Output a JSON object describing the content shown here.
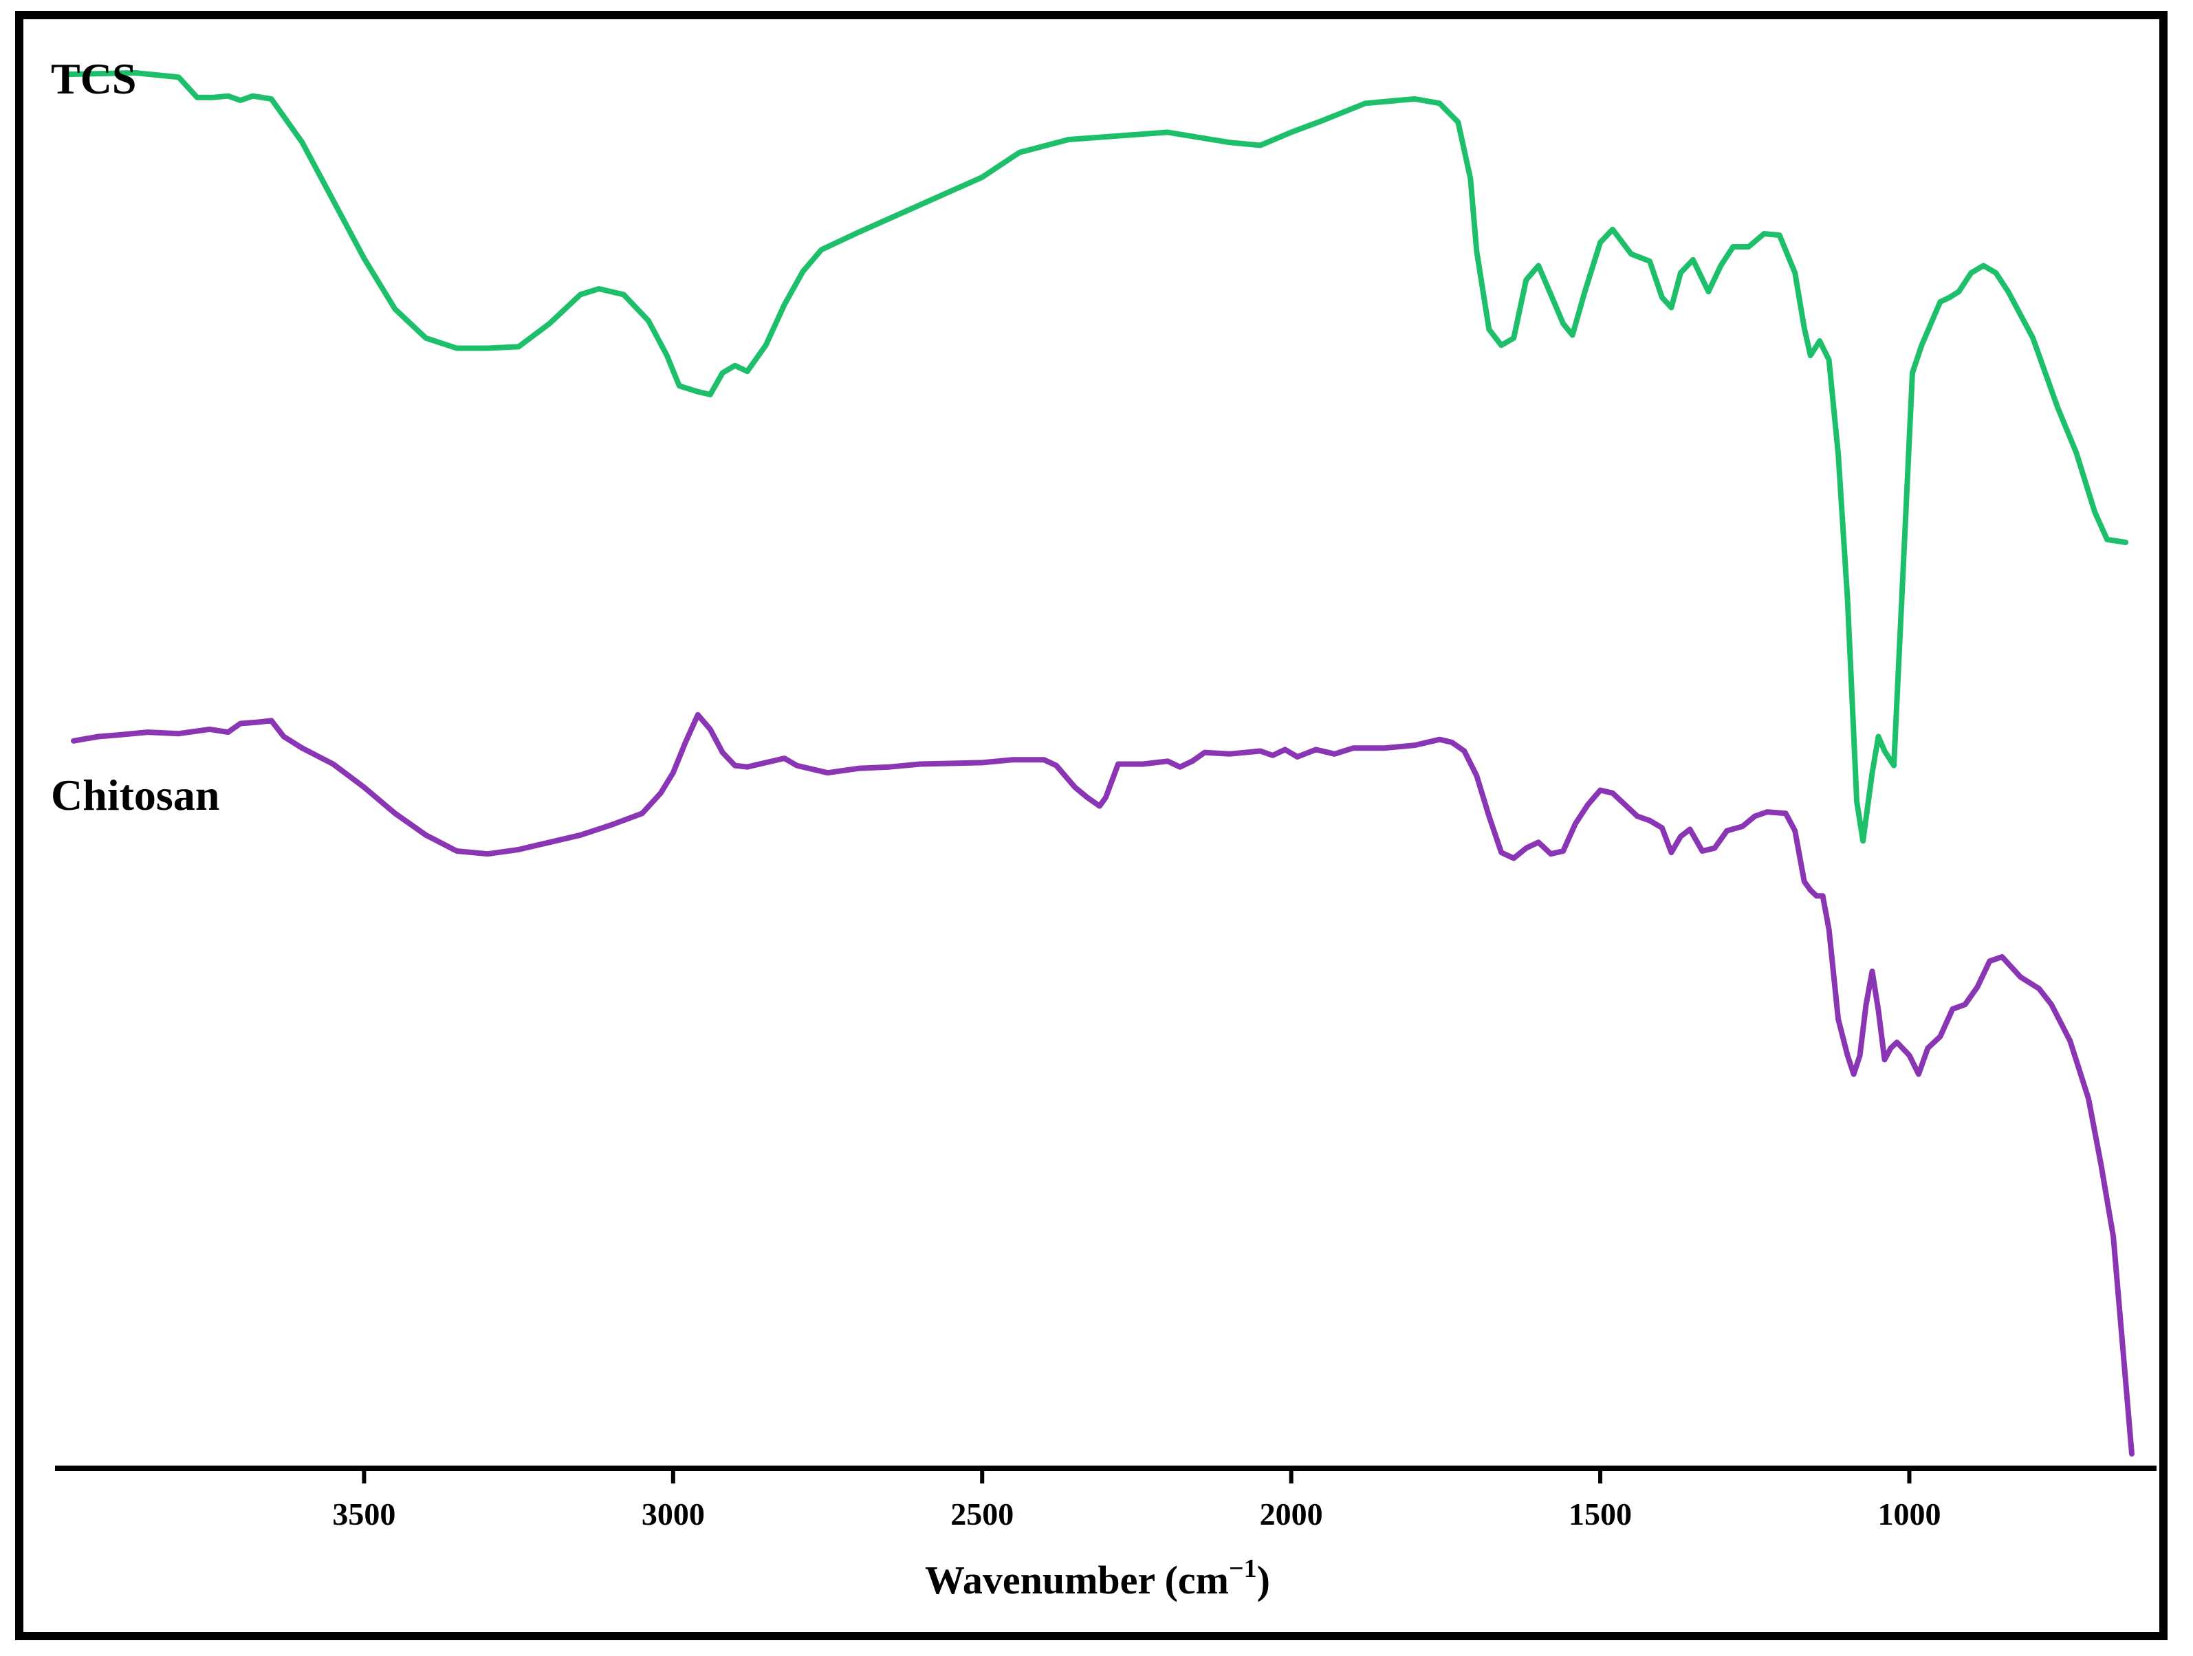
{
  "chart_data": {
    "type": "line",
    "xlabel": "Wavenumber  (cm",
    "xlabel_sup": "−1",
    "xlabel_close": ")",
    "xlim": [
      4000,
      600
    ],
    "x_ticks": [
      3500,
      3000,
      2500,
      2000,
      1500,
      1000
    ],
    "y_axis_visible": false,
    "grid": false,
    "series": [
      {
        "name": "TCS",
        "color": "#1dbf6a",
        "points": [
          [
            3980,
            0.962
          ],
          [
            3870,
            0.963
          ],
          [
            3800,
            0.96
          ],
          [
            3770,
            0.946
          ],
          [
            3745,
            0.946
          ],
          [
            3720,
            0.947
          ],
          [
            3700,
            0.944
          ],
          [
            3680,
            0.947
          ],
          [
            3650,
            0.945
          ],
          [
            3600,
            0.915
          ],
          [
            3550,
            0.875
          ],
          [
            3500,
            0.835
          ],
          [
            3450,
            0.8
          ],
          [
            3400,
            0.78
          ],
          [
            3350,
            0.773
          ],
          [
            3300,
            0.773
          ],
          [
            3250,
            0.774
          ],
          [
            3200,
            0.79
          ],
          [
            3150,
            0.81
          ],
          [
            3120,
            0.814
          ],
          [
            3080,
            0.81
          ],
          [
            3040,
            0.792
          ],
          [
            3010,
            0.768
          ],
          [
            2990,
            0.747
          ],
          [
            2960,
            0.743
          ],
          [
            2940,
            0.741
          ],
          [
            2920,
            0.756
          ],
          [
            2900,
            0.761
          ],
          [
            2880,
            0.757
          ],
          [
            2850,
            0.775
          ],
          [
            2820,
            0.803
          ],
          [
            2790,
            0.826
          ],
          [
            2760,
            0.841
          ],
          [
            2700,
            0.853
          ],
          [
            2600,
            0.872
          ],
          [
            2500,
            0.891
          ],
          [
            2440,
            0.908
          ],
          [
            2360,
            0.917
          ],
          [
            2200,
            0.922
          ],
          [
            2100,
            0.915
          ],
          [
            2050,
            0.913
          ],
          [
            2000,
            0.922
          ],
          [
            1950,
            0.93
          ],
          [
            1880,
            0.942
          ],
          [
            1800,
            0.945
          ],
          [
            1760,
            0.942
          ],
          [
            1730,
            0.929
          ],
          [
            1710,
            0.89
          ],
          [
            1700,
            0.84
          ],
          [
            1680,
            0.786
          ],
          [
            1660,
            0.775
          ],
          [
            1640,
            0.78
          ],
          [
            1620,
            0.82
          ],
          [
            1600,
            0.83
          ],
          [
            1580,
            0.81
          ],
          [
            1560,
            0.79
          ],
          [
            1545,
            0.782
          ],
          [
            1525,
            0.812
          ],
          [
            1500,
            0.846
          ],
          [
            1480,
            0.855
          ],
          [
            1450,
            0.838
          ],
          [
            1420,
            0.833
          ],
          [
            1400,
            0.808
          ],
          [
            1385,
            0.801
          ],
          [
            1370,
            0.825
          ],
          [
            1350,
            0.834
          ],
          [
            1325,
            0.812
          ],
          [
            1305,
            0.83
          ],
          [
            1285,
            0.843
          ],
          [
            1260,
            0.843
          ],
          [
            1235,
            0.852
          ],
          [
            1210,
            0.851
          ],
          [
            1185,
            0.825
          ],
          [
            1170,
            0.787
          ],
          [
            1160,
            0.768
          ],
          [
            1145,
            0.778
          ],
          [
            1130,
            0.765
          ],
          [
            1115,
            0.7
          ],
          [
            1100,
            0.6
          ],
          [
            1085,
            0.46
          ],
          [
            1075,
            0.433
          ],
          [
            1060,
            0.48
          ],
          [
            1050,
            0.505
          ],
          [
            1040,
            0.495
          ],
          [
            1025,
            0.485
          ],
          [
            1010,
            0.62
          ],
          [
            995,
            0.756
          ],
          [
            980,
            0.775
          ],
          [
            965,
            0.79
          ],
          [
            950,
            0.805
          ],
          [
            935,
            0.808
          ],
          [
            920,
            0.812
          ],
          [
            900,
            0.825
          ],
          [
            880,
            0.83
          ],
          [
            860,
            0.825
          ],
          [
            840,
            0.812
          ],
          [
            800,
            0.78
          ],
          [
            760,
            0.732
          ],
          [
            730,
            0.701
          ],
          [
            700,
            0.66
          ],
          [
            680,
            0.641
          ],
          [
            650,
            0.639
          ]
        ]
      },
      {
        "name": "Chitosan",
        "color": "#8a35b4",
        "points": [
          [
            3970,
            0.502
          ],
          [
            3930,
            0.505
          ],
          [
            3900,
            0.506
          ],
          [
            3850,
            0.508
          ],
          [
            3800,
            0.507
          ],
          [
            3750,
            0.51
          ],
          [
            3720,
            0.508
          ],
          [
            3700,
            0.514
          ],
          [
            3670,
            0.515
          ],
          [
            3650,
            0.516
          ],
          [
            3630,
            0.505
          ],
          [
            3600,
            0.497
          ],
          [
            3550,
            0.486
          ],
          [
            3500,
            0.47
          ],
          [
            3450,
            0.452
          ],
          [
            3400,
            0.437
          ],
          [
            3350,
            0.426
          ],
          [
            3300,
            0.424
          ],
          [
            3250,
            0.427
          ],
          [
            3200,
            0.432
          ],
          [
            3150,
            0.437
          ],
          [
            3100,
            0.444
          ],
          [
            3050,
            0.452
          ],
          [
            3020,
            0.466
          ],
          [
            3000,
            0.48
          ],
          [
            2980,
            0.501
          ],
          [
            2960,
            0.52
          ],
          [
            2940,
            0.51
          ],
          [
            2920,
            0.494
          ],
          [
            2900,
            0.485
          ],
          [
            2880,
            0.484
          ],
          [
            2850,
            0.487
          ],
          [
            2820,
            0.49
          ],
          [
            2800,
            0.485
          ],
          [
            2750,
            0.48
          ],
          [
            2700,
            0.483
          ],
          [
            2650,
            0.484
          ],
          [
            2600,
            0.486
          ],
          [
            2500,
            0.487
          ],
          [
            2450,
            0.489
          ],
          [
            2400,
            0.489
          ],
          [
            2380,
            0.485
          ],
          [
            2350,
            0.47
          ],
          [
            2330,
            0.463
          ],
          [
            2310,
            0.457
          ],
          [
            2300,
            0.463
          ],
          [
            2280,
            0.486
          ],
          [
            2240,
            0.486
          ],
          [
            2200,
            0.488
          ],
          [
            2180,
            0.484
          ],
          [
            2160,
            0.488
          ],
          [
            2140,
            0.494
          ],
          [
            2100,
            0.493
          ],
          [
            2050,
            0.495
          ],
          [
            2030,
            0.492
          ],
          [
            2010,
            0.496
          ],
          [
            1990,
            0.491
          ],
          [
            1960,
            0.496
          ],
          [
            1930,
            0.493
          ],
          [
            1900,
            0.497
          ],
          [
            1850,
            0.497
          ],
          [
            1800,
            0.499
          ],
          [
            1760,
            0.503
          ],
          [
            1740,
            0.501
          ],
          [
            1720,
            0.495
          ],
          [
            1700,
            0.478
          ],
          [
            1680,
            0.45
          ],
          [
            1660,
            0.425
          ],
          [
            1640,
            0.421
          ],
          [
            1620,
            0.428
          ],
          [
            1600,
            0.432
          ],
          [
            1580,
            0.424
          ],
          [
            1560,
            0.426
          ],
          [
            1540,
            0.445
          ],
          [
            1520,
            0.458
          ],
          [
            1500,
            0.468
          ],
          [
            1480,
            0.466
          ],
          [
            1460,
            0.458
          ],
          [
            1440,
            0.45
          ],
          [
            1420,
            0.447
          ],
          [
            1400,
            0.442
          ],
          [
            1385,
            0.425
          ],
          [
            1370,
            0.436
          ],
          [
            1355,
            0.441
          ],
          [
            1335,
            0.426
          ],
          [
            1315,
            0.428
          ],
          [
            1295,
            0.44
          ],
          [
            1270,
            0.443
          ],
          [
            1250,
            0.45
          ],
          [
            1230,
            0.453
          ],
          [
            1200,
            0.452
          ],
          [
            1185,
            0.44
          ],
          [
            1170,
            0.405
          ],
          [
            1160,
            0.399
          ],
          [
            1150,
            0.395
          ],
          [
            1140,
            0.395
          ],
          [
            1130,
            0.372
          ],
          [
            1115,
            0.31
          ],
          [
            1100,
            0.285
          ],
          [
            1090,
            0.272
          ],
          [
            1080,
            0.285
          ],
          [
            1070,
            0.32
          ],
          [
            1060,
            0.343
          ],
          [
            1050,
            0.316
          ],
          [
            1040,
            0.282
          ],
          [
            1030,
            0.29
          ],
          [
            1020,
            0.294
          ],
          [
            1000,
            0.285
          ],
          [
            985,
            0.272
          ],
          [
            970,
            0.29
          ],
          [
            950,
            0.298
          ],
          [
            930,
            0.317
          ],
          [
            910,
            0.32
          ],
          [
            890,
            0.332
          ],
          [
            870,
            0.35
          ],
          [
            850,
            0.353
          ],
          [
            820,
            0.339
          ],
          [
            790,
            0.331
          ],
          [
            770,
            0.32
          ],
          [
            740,
            0.295
          ],
          [
            710,
            0.255
          ],
          [
            690,
            0.21
          ],
          [
            670,
            0.16
          ],
          [
            655,
            0.085
          ],
          [
            640,
            0.01
          ]
        ]
      }
    ]
  }
}
